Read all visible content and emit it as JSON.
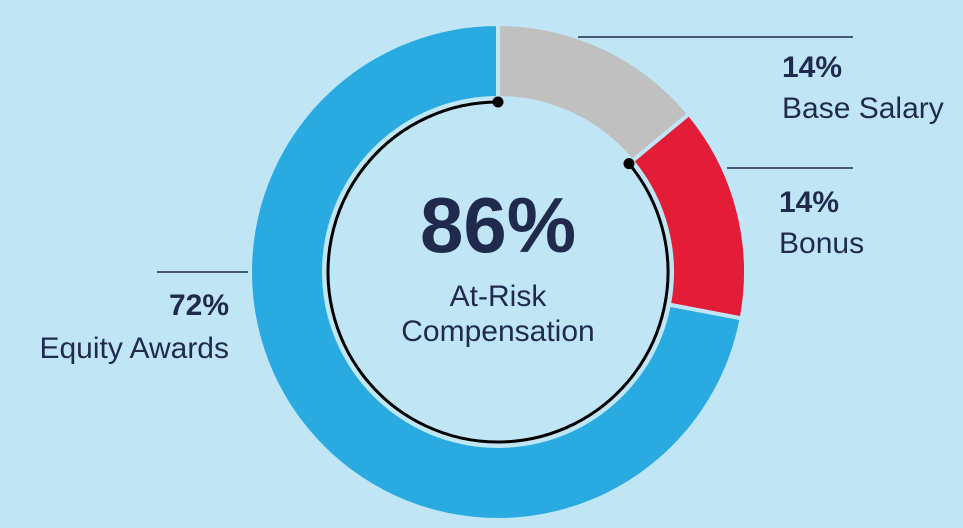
{
  "chart_data": {
    "type": "pie",
    "center_value": "86%",
    "center_label_line1": "At-Risk",
    "center_label_line2": "Compensation",
    "slices": [
      {
        "label": "Base Salary",
        "value": 14,
        "value_label": "14%",
        "color": "#c0c0c0"
      },
      {
        "label": "Bonus",
        "value": 14,
        "value_label": "14%",
        "color": "#e31c37"
      },
      {
        "label": "Equity Awards",
        "value": 72,
        "value_label": "72%",
        "color": "#29abe2"
      }
    ],
    "background": "#c0e6f6",
    "text_color": "#1f2a4d"
  }
}
